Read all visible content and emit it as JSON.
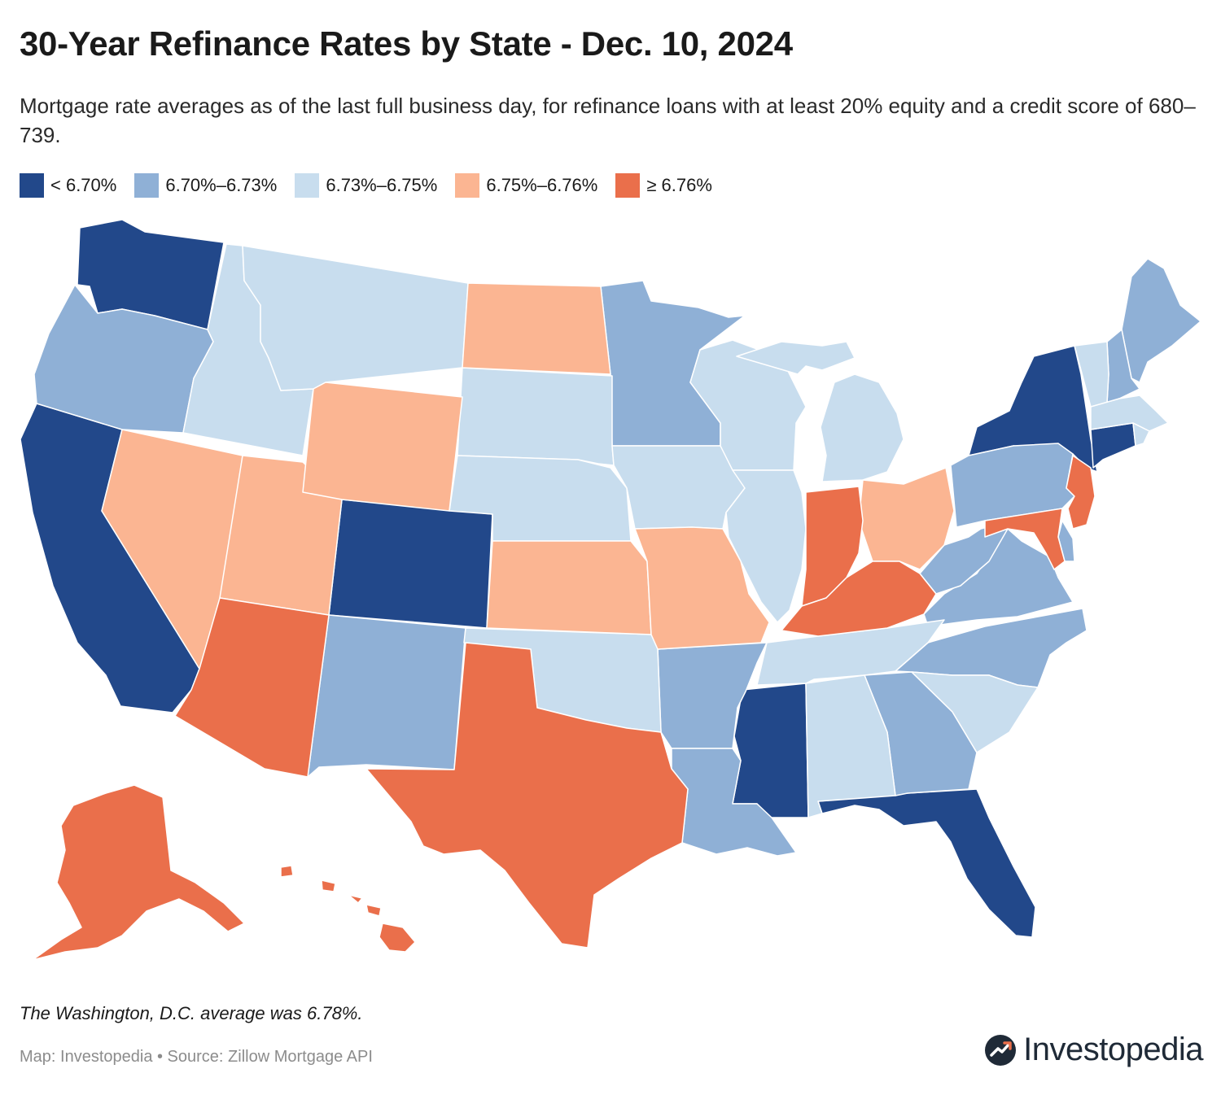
{
  "title": "30-Year Refinance Rates by State - Dec. 10, 2024",
  "subtitle": "Mortgage rate averages as of the last full business day, for refinance loans with at least 20% equity and a credit score of 680–739.",
  "colors": {
    "bin1": "#22488a",
    "bin2": "#8fb0d6",
    "bin3": "#c8ddee",
    "bin4": "#fbb592",
    "bin5": "#ea6f4b",
    "background": "#ffffff",
    "border": "#ffffff"
  },
  "legend": {
    "items": [
      {
        "label": "< 6.70%",
        "color": "#22488a"
      },
      {
        "label": "6.70%–6.73%",
        "color": "#8fb0d6"
      },
      {
        "label": "6.73%–6.75%",
        "color": "#c8ddee"
      },
      {
        "label": "6.75%–6.76%",
        "color": "#fbb592"
      },
      {
        "label": "≥ 6.76%",
        "color": "#ea6f4b"
      }
    ]
  },
  "note": "The Washington, D.C. average was 6.78%.",
  "source": "Map: Investopedia • Source: Zillow Mortgage API",
  "brand": {
    "name": "Investopedia",
    "icon": "investopedia-logo-icon"
  }
}
